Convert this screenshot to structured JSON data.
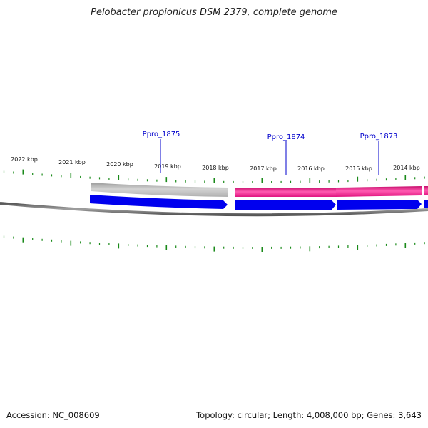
{
  "title": "Pelobacter propionicus DSM 2379, complete genome",
  "footer": {
    "accession": "Accession: NC_008609",
    "summary": "Topology: circular; Length: 4,008,000 bp; Genes: 3,643"
  },
  "scale_labels": [
    "2022 kbp",
    "2021 kbp",
    "2020 kbp",
    "2019 kbp",
    "2018 kbp",
    "2017 kbp",
    "2016 kbp",
    "2015 kbp",
    "2014 kbp"
  ],
  "gene_labels": [
    "Ppro_1875",
    "Ppro_1874",
    "Ppro_1873"
  ],
  "colors": {
    "tick": "#1a8a1a",
    "backbone": "#777777",
    "cds": "#0000ee",
    "gene_gray": "#b8b8b8",
    "gene_pink": "#ee1b8a",
    "label": "#0000cc"
  }
}
